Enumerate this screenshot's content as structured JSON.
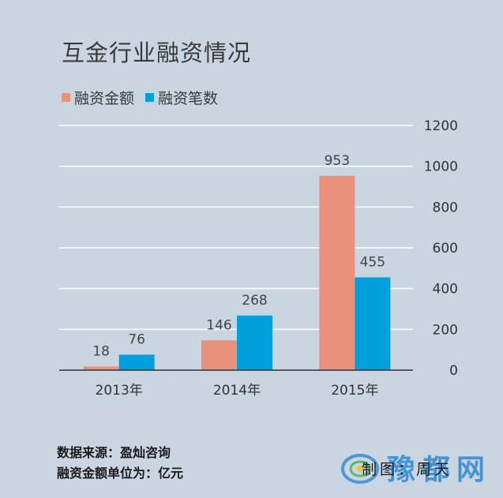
{
  "chart_data": {
    "type": "bar",
    "title": "互金行业融资情况",
    "categories": [
      "2013年",
      "2014年",
      "2015年"
    ],
    "series": [
      {
        "name": "融资金额",
        "values": [
          18,
          146,
          953
        ],
        "color": "#e9917a"
      },
      {
        "name": "融资笔数",
        "values": [
          76,
          268,
          455
        ],
        "color": "#00a0dc"
      }
    ],
    "ylim": [
      0,
      1200
    ],
    "yticks": [
      0,
      200,
      400,
      600,
      800,
      1000,
      1200
    ],
    "y_axis_position": "right",
    "grid": true,
    "legend_position": "top-left"
  },
  "footer": {
    "source": "数据来源：盈灿咨询",
    "unit": "融资金额单位为：亿元",
    "credit": "制图：周天"
  },
  "watermark": {
    "text": "豫都网",
    "logo_icon": "swirl-logo-icon"
  }
}
